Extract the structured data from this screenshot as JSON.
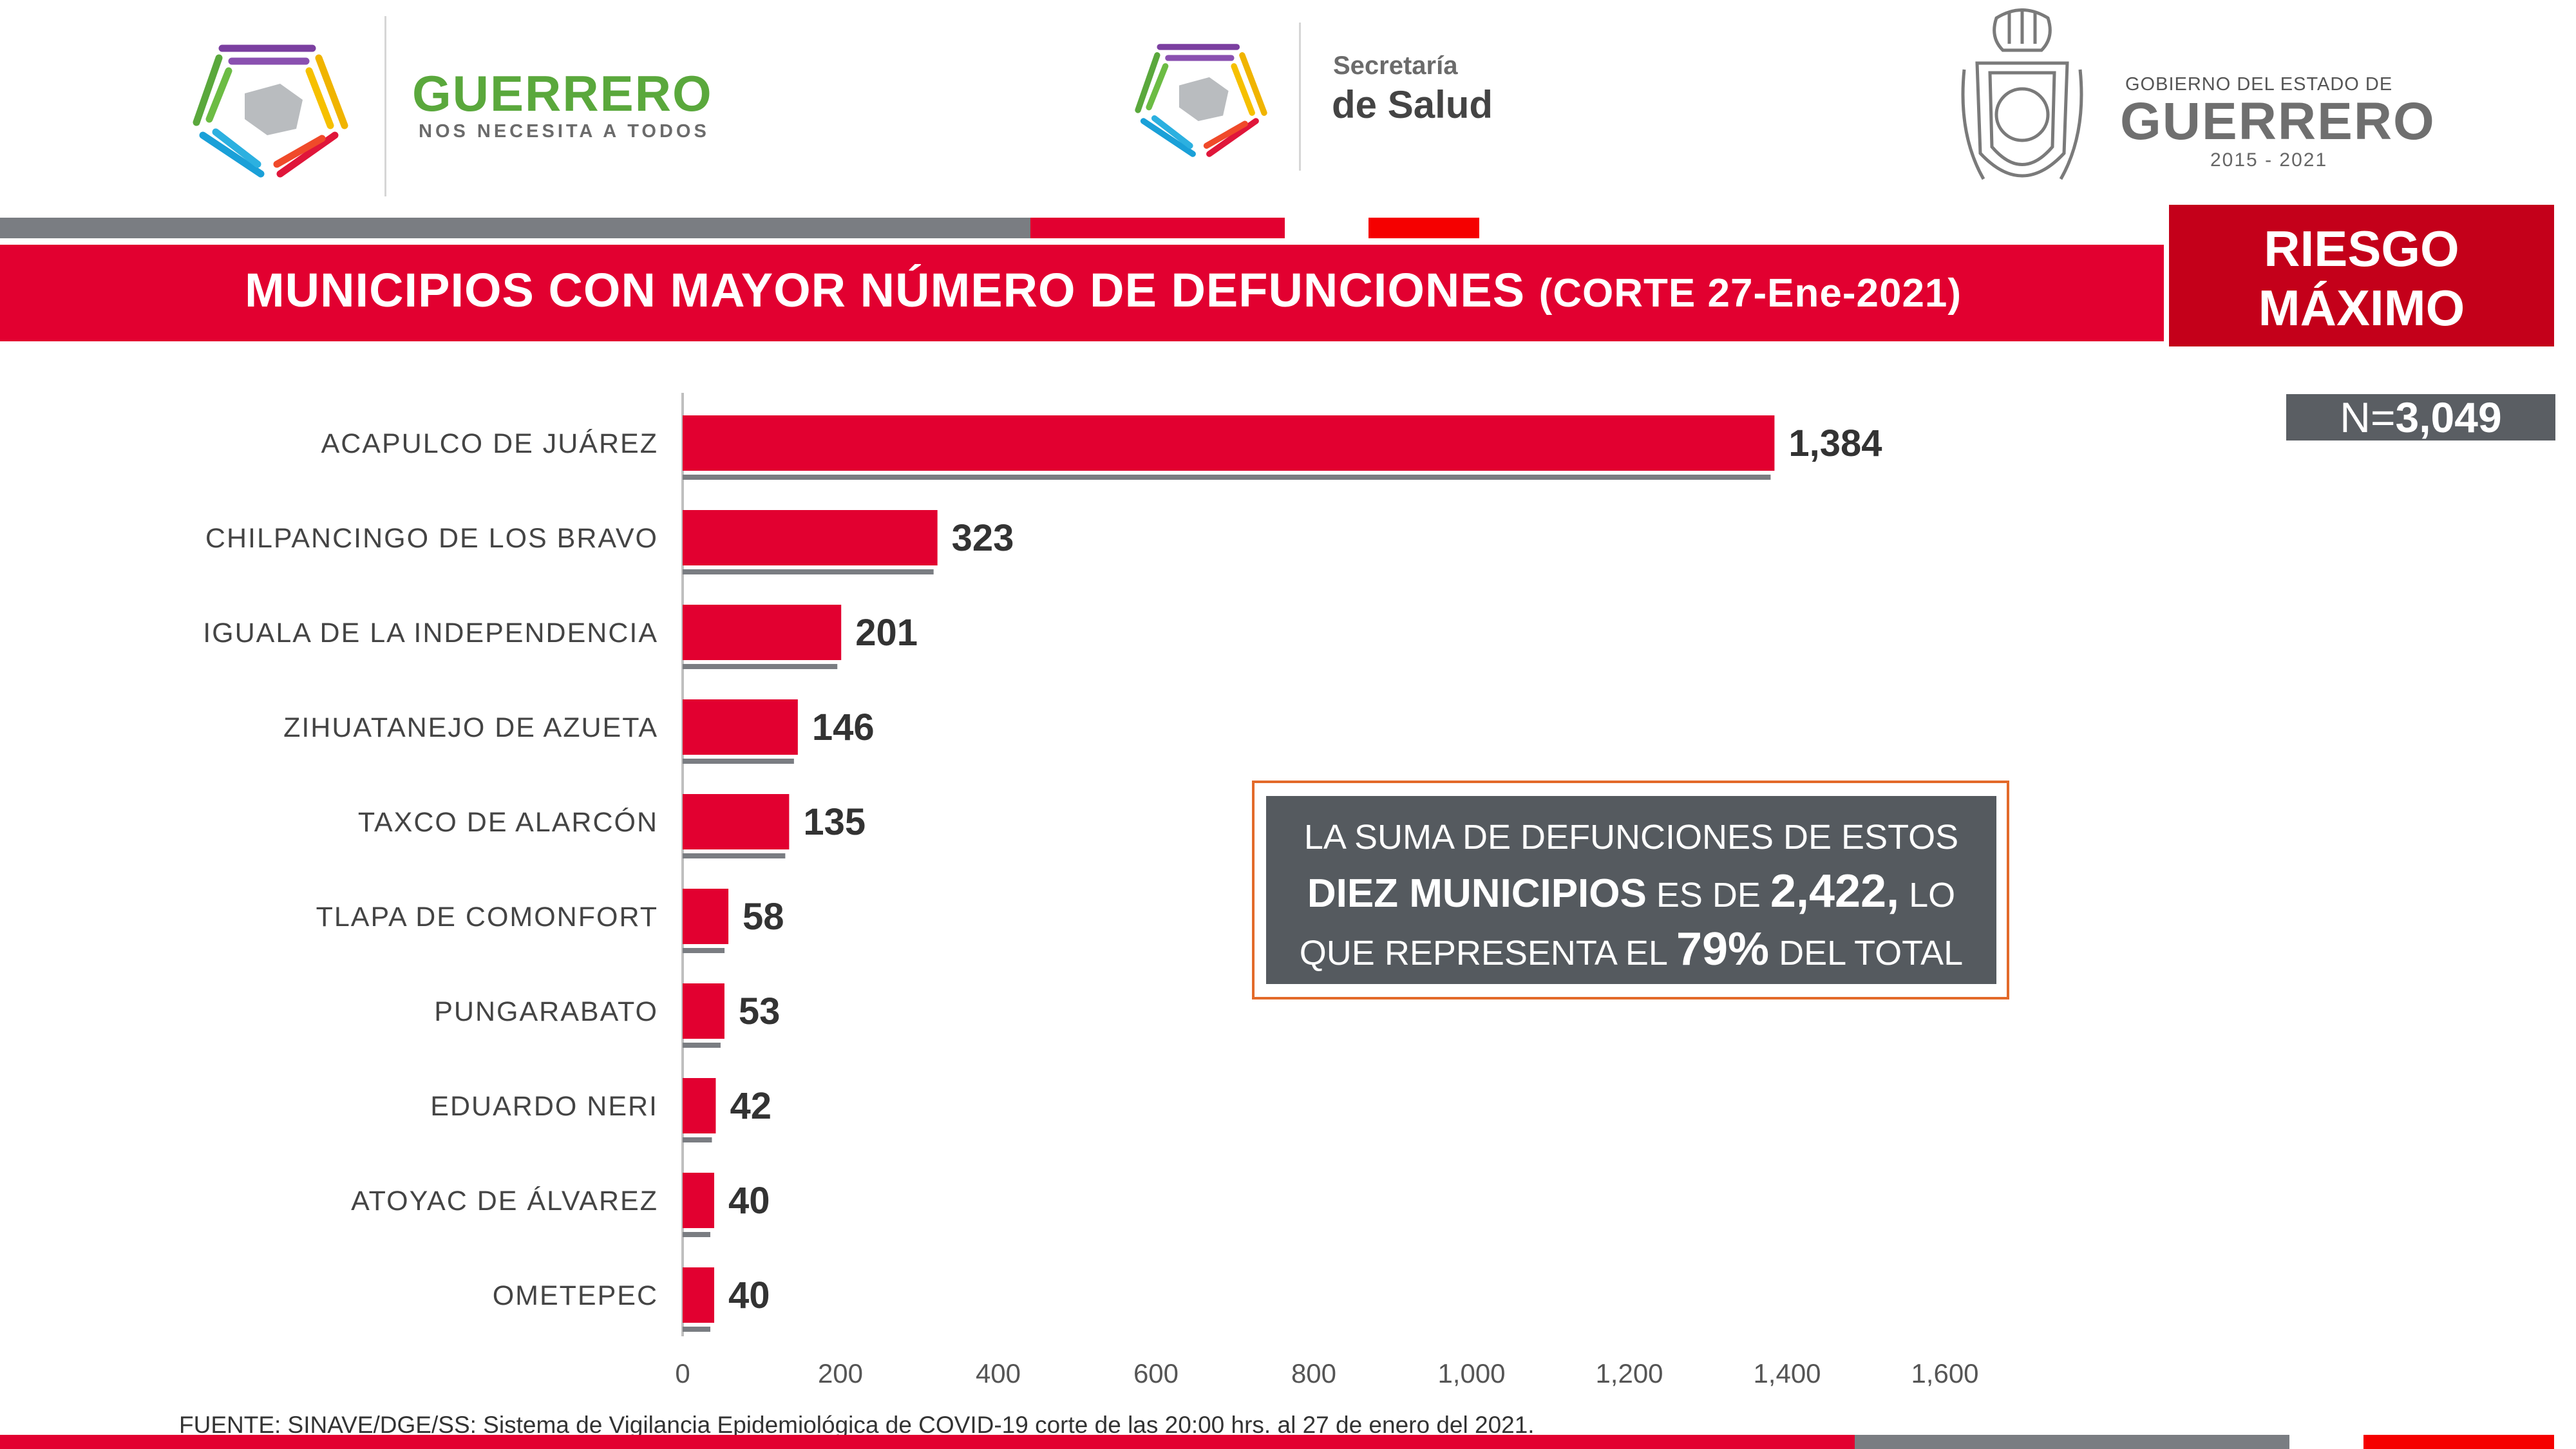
{
  "header": {
    "guerrero_logo": {
      "title": "GUERRERO",
      "tagline": "NOS NECESITA A TODOS"
    },
    "salud_logo": {
      "line1": "Secretaría",
      "line2": "de Salud"
    },
    "gobierno_logo": {
      "line1": "GOBIERNO DEL ESTADO DE",
      "line2": "GUERRERO",
      "line3": "2015 - 2021"
    }
  },
  "title": {
    "main": "MUNICIPIOS CON MAYOR NÚMERO  DE  DEFUNCIONES",
    "corte": "(CORTE 27-Ene-2021)"
  },
  "riesgo": {
    "line1": "RIESGO",
    "line2": "MÁXIMO"
  },
  "n_label": {
    "prefix": "N=",
    "value": "3,049"
  },
  "summary": {
    "p1": "LA SUMA DE DEFUNCIONES DE ESTOS",
    "p2_bold": "DIEZ MUNICIPIOS",
    "p2_mid": " ES DE ",
    "p2_value": "2,422,",
    "p2_end": " LO",
    "p3_start": "QUE REPRESENTA EL ",
    "p3_pct": "79%",
    "p3_end": " DEL TOTAL"
  },
  "source": "FUENTE: SINAVE/DGE/SS: Sistema de Vigilancia Epidemiológica de COVID-19 corte de las 20:00 hrs. al 27 de enero del 2021.",
  "colors": {
    "bar": "#e20030",
    "underline": "#7a7d82",
    "axis": "#bfbfbf"
  },
  "chart_data": {
    "type": "bar",
    "orientation": "horizontal",
    "categories": [
      "ACAPULCO DE JUÁREZ",
      "CHILPANCINGO DE LOS BRAVO",
      "IGUALA DE LA INDEPENDENCIA",
      "ZIHUATANEJO DE AZUETA",
      "TAXCO DE ALARCÓN",
      "TLAPA DE COMONFORT",
      "PUNGARABATO",
      "EDUARDO NERI",
      "ATOYAC DE ÁLVAREZ",
      "OMETEPEC"
    ],
    "values": [
      1384,
      323,
      201,
      146,
      135,
      58,
      53,
      42,
      40,
      40
    ],
    "value_labels": [
      "1,384",
      "323",
      "201",
      "146",
      "135",
      "58",
      "53",
      "42",
      "40",
      "40"
    ],
    "xlim": [
      0,
      1600
    ],
    "xticks": [
      0,
      200,
      400,
      600,
      800,
      1000,
      1200,
      1400,
      1600
    ],
    "xtick_labels": [
      "0",
      "200",
      "400",
      "600",
      "800",
      "1,000",
      "1,200",
      "1,400",
      "1,600"
    ],
    "grid": false
  }
}
